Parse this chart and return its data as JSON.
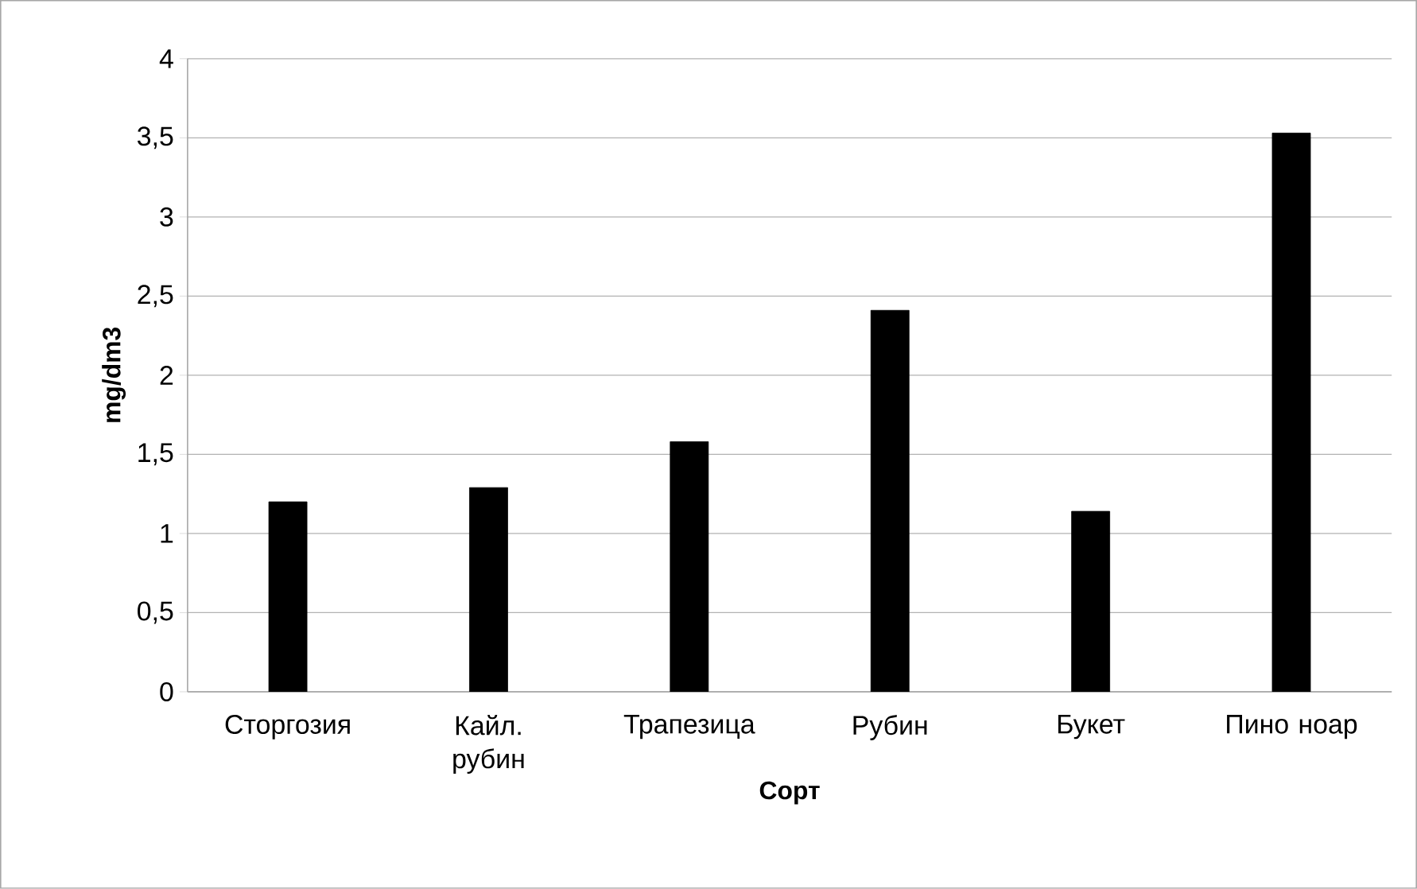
{
  "chart_data": {
    "type": "bar",
    "xlabel": "Сорт",
    "ylabel": "mg/dm3",
    "categories": [
      "Сторгозия",
      "Кайл. рубин",
      "Трапезица",
      "Рубин",
      "Букет",
      "Пино ноар"
    ],
    "values": [
      1.2,
      1.29,
      1.58,
      2.41,
      1.14,
      3.53
    ],
    "color": "#000000",
    "ylim": [
      0,
      4
    ],
    "yticks": [
      0,
      {
        "value": 0.5,
        "label": "0,5"
      },
      1,
      {
        "value": 1.5,
        "label": "1,5"
      },
      2,
      {
        "value": 2.5,
        "label": "2,5"
      },
      3,
      {
        "value": 3.5,
        "label": "3,5"
      },
      4
    ],
    "grid": "y"
  }
}
